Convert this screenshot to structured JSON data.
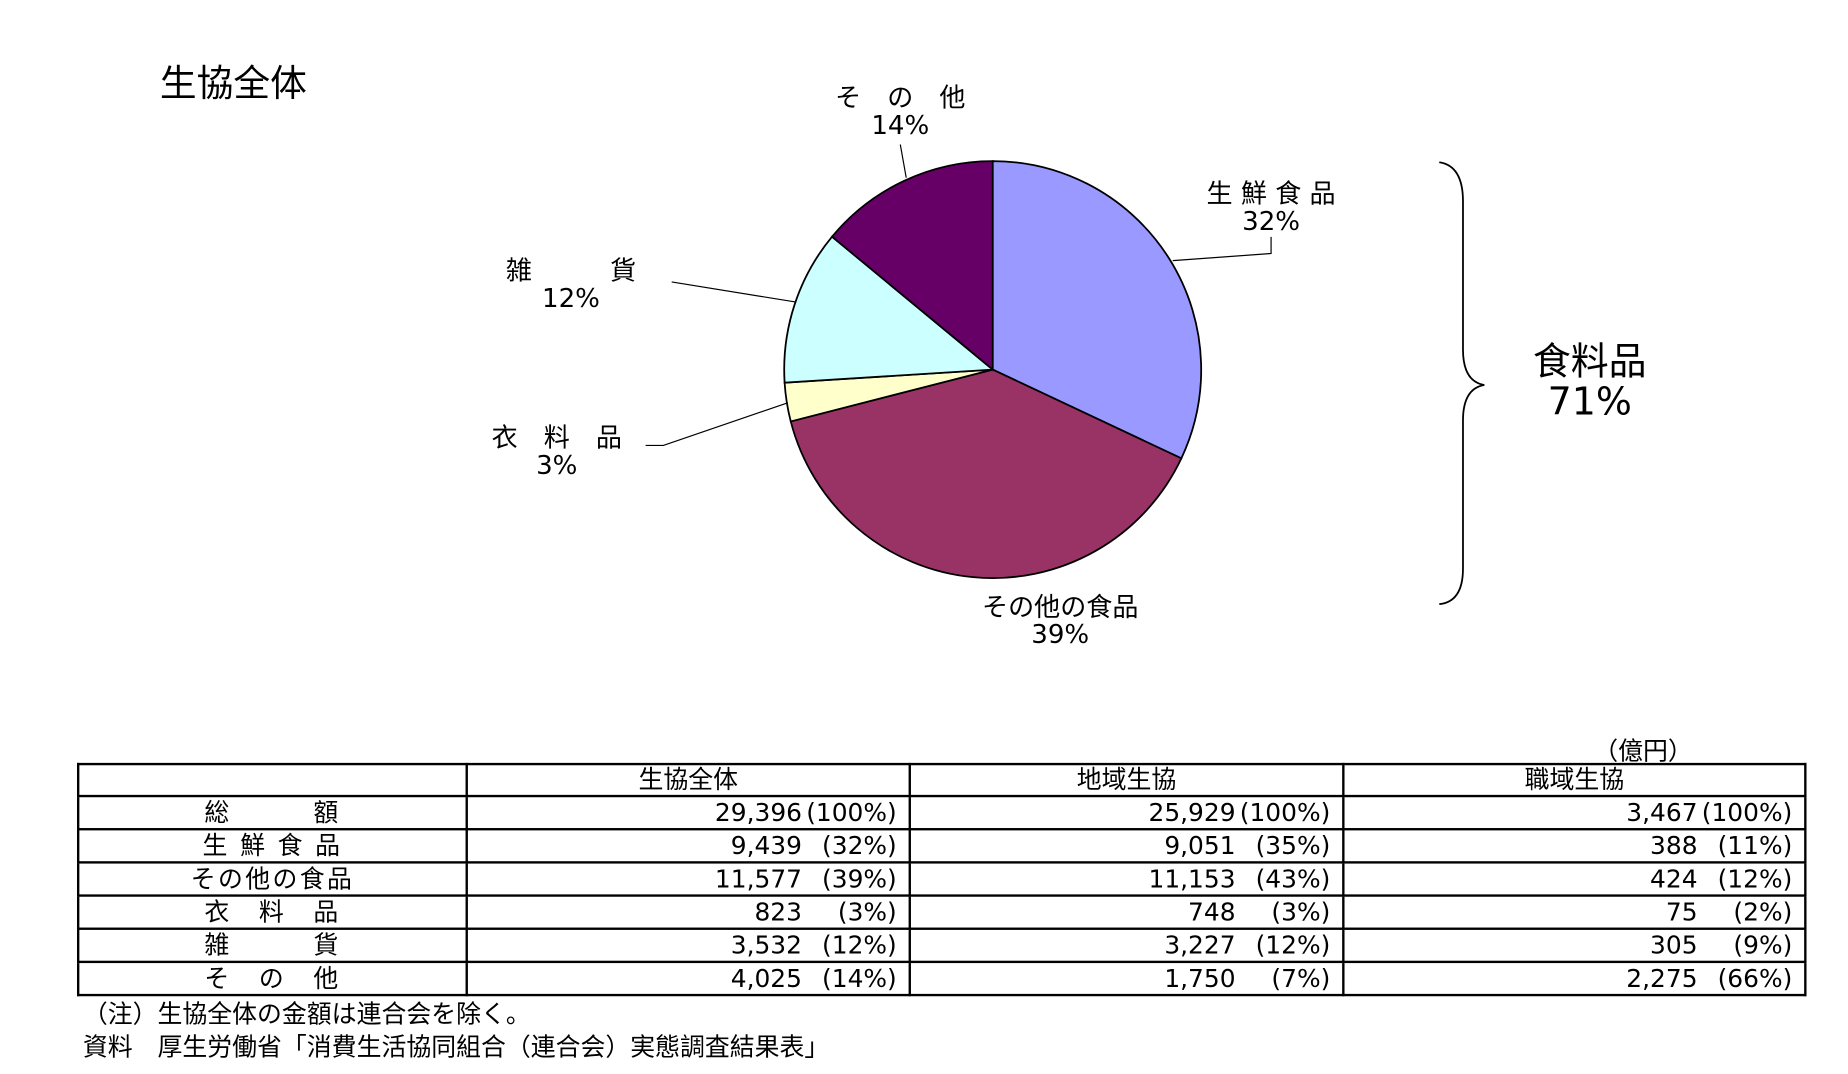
{
  "chart_data": {
    "type": "pie",
    "title": "生協全体",
    "slices": [
      {
        "label": "生 鮮 食 品",
        "value": 32,
        "pct_label": "32%",
        "color": "#9999FF"
      },
      {
        "label": "その他の食品",
        "value": 39,
        "pct_label": "39%",
        "color": "#993366"
      },
      {
        "label": "衣　料　品",
        "value": 3,
        "pct_label": "3%",
        "color": "#FFFFCC"
      },
      {
        "label": "雑　　　貨",
        "value": 12,
        "pct_label": "12%",
        "color": "#CCFFFF"
      },
      {
        "label": "そ　の　他",
        "value": 14,
        "pct_label": "14%",
        "color": "#660066"
      }
    ],
    "start": "top",
    "direction": "clockwise",
    "group_annotation": {
      "label": "食料品",
      "pct_label": "71%"
    }
  },
  "table": {
    "unit": "（億円）",
    "headers": [
      "",
      "生協全体",
      "地域生協",
      "職域生協"
    ],
    "rows": [
      {
        "label": "総　　　額",
        "cells": [
          [
            "29,396",
            "(100%)"
          ],
          [
            "25,929",
            "(100%)"
          ],
          [
            "3,467",
            "(100%)"
          ]
        ]
      },
      {
        "label": "生 鮮 食 品",
        "cells": [
          [
            "9,439",
            "(32%)"
          ],
          [
            "9,051",
            "(35%)"
          ],
          [
            "388",
            "(11%)"
          ]
        ]
      },
      {
        "label": "その他の食品",
        "cells": [
          [
            "11,577",
            "(39%)"
          ],
          [
            "11,153",
            "(43%)"
          ],
          [
            "424",
            "(12%)"
          ]
        ]
      },
      {
        "label": "衣　料　品",
        "cells": [
          [
            "823",
            "(3%)"
          ],
          [
            "748",
            "(3%)"
          ],
          [
            "75",
            "(2%)"
          ]
        ]
      },
      {
        "label": "雑　　　貨",
        "cells": [
          [
            "3,532",
            "(12%)"
          ],
          [
            "3,227",
            "(12%)"
          ],
          [
            "305",
            "(9%)"
          ]
        ]
      },
      {
        "label": "そ　の　他",
        "cells": [
          [
            "4,025",
            "(14%)"
          ],
          [
            "1,750",
            "(7%)"
          ],
          [
            "2,275",
            "(66%)"
          ]
        ]
      }
    ]
  },
  "notes": {
    "note": "（注）生協全体の金額は連合会を除く。",
    "source": "資料　厚生労働省「消費生活協同組合（連合会）実態調査結果表」"
  }
}
